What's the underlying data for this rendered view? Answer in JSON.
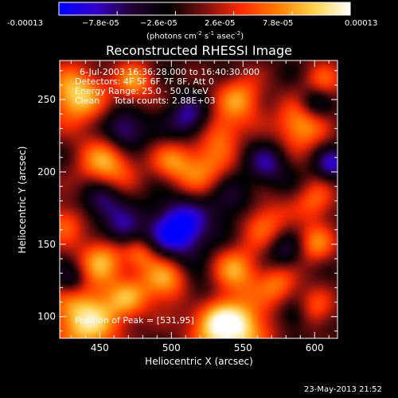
{
  "colorbar": {
    "ticks": [
      "-0.00013",
      "−7.8e-05",
      "−2.6e-05",
      "2.6e-05",
      "7.8e-05",
      "0.00013"
    ],
    "unit_main": "(photons cm",
    "unit_sup1": "-2",
    "unit_mid": " s",
    "unit_sup2": "-1",
    "unit_end": " asec",
    "unit_sup3": "-2",
    "unit_close": ")",
    "stops": [
      "#0000ff",
      "#3300cc",
      "#220033",
      "#000000",
      "#7a1010",
      "#ff2a00",
      "#ff7a00",
      "#ffd24a",
      "#ffffff"
    ]
  },
  "chart_data": {
    "type": "heatmap",
    "title": "Reconstructed RHESSI Image",
    "xlabel": "Heliocentric X (arcsec)",
    "ylabel": "Heliocentric Y (arcsec)",
    "xlim": [
      422,
      616
    ],
    "ylim": [
      85,
      277
    ],
    "xticks": [
      450,
      500,
      550,
      600
    ],
    "yticks": [
      100,
      150,
      200,
      250
    ],
    "peak": {
      "label": "Position of Peak = [531,95]",
      "x": 531,
      "y": 95
    },
    "blobs": [
      {
        "x": 440,
        "y": 99,
        "a": 1.0,
        "r": 18
      },
      {
        "x": 531,
        "y": 95,
        "a": 1.0,
        "r": 14
      },
      {
        "x": 553,
        "y": 92,
        "a": 0.7,
        "r": 14
      },
      {
        "x": 433,
        "y": 253,
        "a": 0.95,
        "r": 14
      },
      {
        "x": 474,
        "y": 262,
        "a": 0.7,
        "r": 10
      },
      {
        "x": 455,
        "y": 206,
        "a": 0.8,
        "r": 14
      },
      {
        "x": 500,
        "y": 207,
        "a": 0.5,
        "r": 10
      },
      {
        "x": 522,
        "y": 202,
        "a": 0.65,
        "r": 14
      },
      {
        "x": 548,
        "y": 250,
        "a": 0.7,
        "r": 12
      },
      {
        "x": 535,
        "y": 227,
        "a": 0.5,
        "r": 10
      },
      {
        "x": 590,
        "y": 232,
        "a": 0.8,
        "r": 12
      },
      {
        "x": 606,
        "y": 262,
        "a": 0.5,
        "r": 10
      },
      {
        "x": 565,
        "y": 165,
        "a": 0.6,
        "r": 12
      },
      {
        "x": 601,
        "y": 180,
        "a": 0.55,
        "r": 10
      },
      {
        "x": 600,
        "y": 150,
        "a": 0.65,
        "r": 10
      },
      {
        "x": 452,
        "y": 140,
        "a": 0.7,
        "r": 12
      },
      {
        "x": 478,
        "y": 143,
        "a": 0.5,
        "r": 8
      },
      {
        "x": 495,
        "y": 125,
        "a": 0.8,
        "r": 12
      },
      {
        "x": 545,
        "y": 132,
        "a": 0.7,
        "r": 12
      },
      {
        "x": 575,
        "y": 123,
        "a": 0.6,
        "r": 10
      },
      {
        "x": 600,
        "y": 105,
        "a": 0.5,
        "r": 10
      },
      {
        "x": 470,
        "y": 112,
        "a": 0.5,
        "r": 10
      },
      {
        "x": 425,
        "y": 165,
        "a": 0.55,
        "r": 10
      },
      {
        "x": 505,
        "y": 160,
        "a": -1.0,
        "r": 14
      },
      {
        "x": 467,
        "y": 228,
        "a": -0.7,
        "r": 10
      },
      {
        "x": 512,
        "y": 236,
        "a": -0.6,
        "r": 10
      },
      {
        "x": 452,
        "y": 180,
        "a": -0.6,
        "r": 10
      },
      {
        "x": 567,
        "y": 205,
        "a": -0.5,
        "r": 10
      },
      {
        "x": 612,
        "y": 205,
        "a": -0.6,
        "r": 8
      },
      {
        "x": 600,
        "y": 248,
        "a": -0.5,
        "r": 8
      },
      {
        "x": 430,
        "y": 125,
        "a": -0.5,
        "r": 8
      },
      {
        "x": 466,
        "y": 160,
        "a": -0.55,
        "r": 9
      },
      {
        "x": 520,
        "y": 115,
        "a": -0.4,
        "r": 10
      },
      {
        "x": 580,
        "y": 145,
        "a": -0.45,
        "r": 10
      },
      {
        "x": 586,
        "y": 100,
        "a": -0.4,
        "r": 8
      },
      {
        "x": 540,
        "y": 180,
        "a": -0.4,
        "r": 12
      }
    ]
  },
  "info": {
    "line1": "6-Jul-2003 16:36:28.000 to 16:40:30.000",
    "line2": "Detectors: 4F 5F 6F 7F 8F, Att 0",
    "line3": "Energy Range: 25.0 - 50.0 keV",
    "line4": "Clean     Total counts: 2.88E+03"
  },
  "footer": {
    "date": "23-May-2013 21:52"
  }
}
